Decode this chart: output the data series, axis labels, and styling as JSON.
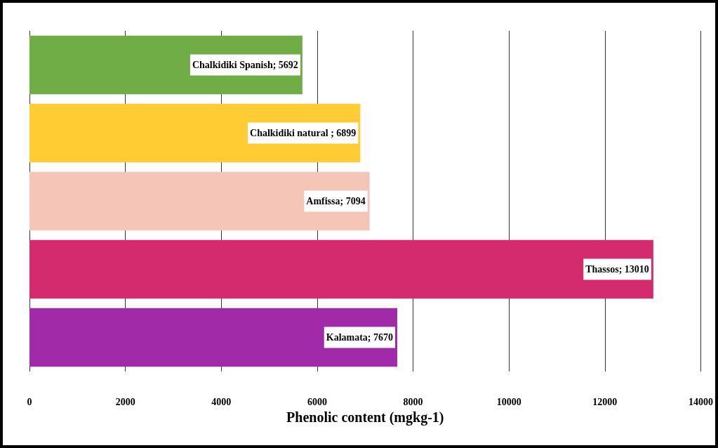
{
  "chart_data": {
    "type": "bar",
    "orientation": "horizontal",
    "xlabel": "Phenolic content (mgkg-1)",
    "categories": [
      null,
      null,
      null,
      null,
      null
    ],
    "values": [
      5692,
      6899,
      7094,
      13010,
      7670
    ],
    "colors": [
      "#70ad47",
      "#ffcc33",
      "#f5c6b8",
      "#d42a6e",
      "#a12aa8"
    ],
    "value_labels": [
      "Chalkidiki Spanish; 5692",
      "Chalkidiki natural ; 6899",
      "Amfissa; 7094",
      "Thassos; 13010",
      "Kalamata; 7670"
    ],
    "xlim": [
      0,
      14000
    ],
    "xticks": [
      0,
      2000,
      4000,
      6000,
      8000,
      10000,
      12000,
      14000
    ],
    "grid": "x",
    "tick_labels": "x"
  }
}
